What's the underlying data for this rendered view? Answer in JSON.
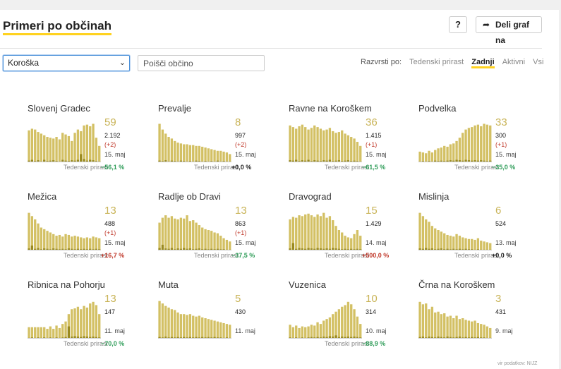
{
  "header": {
    "title": "Primeri po občinah",
    "help_label": "?",
    "share_label": "Deli graf na",
    "share_icon": "share-arrow-icon"
  },
  "filters": {
    "region": "Koroška",
    "search_placeholder": "Poišči občino",
    "sort_label": "Razvrsti po:",
    "sort_options": [
      "Tedenski prirast",
      "Zadnji",
      "Aktivni",
      "Vsi"
    ],
    "sort_active": "Zadnji"
  },
  "trend_label": "Tedenski prirast",
  "colors": {
    "bar": "#d3c064",
    "bar_dark": "#9a8a20",
    "accent": "#ffd21f",
    "down": "#2e9c58",
    "up": "#c0392b"
  },
  "source_label": "vir podatkov: NIJZ",
  "municipalities": [
    {
      "name": "Slovenj Gradec",
      "active": "59",
      "total": "2.192",
      "delta": "(+2)",
      "date": "15. maj",
      "trend": "−56,1 %",
      "dir": "down",
      "bars": [
        0.78,
        0.82,
        0.8,
        0.74,
        0.7,
        0.66,
        0.62,
        0.6,
        0.58,
        0.62,
        0.56,
        0.72,
        0.68,
        0.64,
        0.52,
        0.72,
        0.8,
        0.76,
        0.9,
        0.92,
        0.88,
        0.94,
        0.6,
        0.4
      ],
      "dark": [
        0.04,
        0.06,
        0.03,
        0.05,
        0.02,
        0.06,
        0.03,
        0.04,
        0.05,
        0.03,
        0.02,
        0.06,
        0.04,
        0.03,
        0.05,
        0.04,
        0.06,
        0.2,
        0.08,
        0.04,
        0.06,
        0.05,
        0.03,
        0.02
      ]
    },
    {
      "name": "Prevalje",
      "active": "8",
      "total": "997",
      "delta": "(+2)",
      "date": "15. maj",
      "trend": "+0,0 %",
      "dir": "flat",
      "bars": [
        0.94,
        0.8,
        0.7,
        0.62,
        0.58,
        0.52,
        0.48,
        0.46,
        0.44,
        0.44,
        0.42,
        0.42,
        0.4,
        0.4,
        0.38,
        0.36,
        0.34,
        0.32,
        0.3,
        0.28,
        0.28,
        0.26,
        0.24,
        0.2
      ],
      "dark": [
        0.04,
        0.03,
        0.05,
        0.02,
        0.04,
        0.03,
        0.02,
        0.04,
        0.03,
        0.02,
        0.03,
        0.02,
        0.04,
        0.03,
        0.02,
        0.03,
        0.02,
        0.03,
        0.02,
        0.04,
        0.02,
        0.03,
        0.02,
        0.02
      ]
    },
    {
      "name": "Ravne na Koroškem",
      "active": "36",
      "total": "1.415",
      "delta": "(+1)",
      "date": "15. maj",
      "trend": "−61,5 %",
      "dir": "down",
      "bars": [
        0.9,
        0.86,
        0.82,
        0.88,
        0.92,
        0.86,
        0.8,
        0.84,
        0.9,
        0.86,
        0.82,
        0.78,
        0.8,
        0.84,
        0.76,
        0.72,
        0.74,
        0.78,
        0.7,
        0.66,
        0.62,
        0.58,
        0.5,
        0.4
      ],
      "dark": [
        0.05,
        0.04,
        0.06,
        0.03,
        0.05,
        0.04,
        0.06,
        0.03,
        0.05,
        0.04,
        0.03,
        0.05,
        0.04,
        0.06,
        0.03,
        0.04,
        0.05,
        0.03,
        0.04,
        0.05,
        0.03,
        0.04,
        0.03,
        0.02
      ]
    },
    {
      "name": "Podvelka",
      "active": "33",
      "total": "300",
      "delta": "(+1)",
      "date": "15. maj",
      "trend": "−35,0 %",
      "dir": "down",
      "bars": [
        0.26,
        0.24,
        0.22,
        0.28,
        0.24,
        0.3,
        0.34,
        0.36,
        0.4,
        0.38,
        0.44,
        0.46,
        0.52,
        0.6,
        0.72,
        0.8,
        0.84,
        0.86,
        0.9,
        0.92,
        0.88,
        0.94,
        0.92,
        0.9
      ],
      "dark": [
        0.02,
        0.03,
        0.02,
        0.03,
        0.02,
        0.04,
        0.03,
        0.04,
        0.03,
        0.04,
        0.05,
        0.04,
        0.06,
        0.05,
        0.04,
        0.06,
        0.05,
        0.04,
        0.05,
        0.04,
        0.05,
        0.04,
        0.03,
        0.04
      ]
    },
    {
      "name": "Mežica",
      "active": "13",
      "total": "488",
      "delta": "(+1)",
      "date": "15. maj",
      "trend": "+16,7 %",
      "dir": "up",
      "bars": [
        0.92,
        0.84,
        0.76,
        0.66,
        0.56,
        0.52,
        0.48,
        0.44,
        0.4,
        0.36,
        0.38,
        0.34,
        0.4,
        0.38,
        0.34,
        0.36,
        0.34,
        0.32,
        0.3,
        0.32,
        0.3,
        0.34,
        0.32,
        0.3
      ],
      "dark": [
        0.05,
        0.12,
        0.04,
        0.06,
        0.03,
        0.05,
        0.04,
        0.03,
        0.05,
        0.04,
        0.03,
        0.04,
        0.03,
        0.05,
        0.04,
        0.03,
        0.04,
        0.03,
        0.04,
        0.03,
        0.04,
        0.03,
        0.04,
        0.03
      ]
    },
    {
      "name": "Radlje ob Dravi",
      "active": "13",
      "total": "863",
      "delta": "(+1)",
      "date": "15. maj",
      "trend": "−37,5 %",
      "dir": "down",
      "bars": [
        0.68,
        0.8,
        0.86,
        0.8,
        0.84,
        0.78,
        0.76,
        0.8,
        0.78,
        0.86,
        0.72,
        0.74,
        0.68,
        0.62,
        0.56,
        0.52,
        0.5,
        0.48,
        0.44,
        0.42,
        0.36,
        0.3,
        0.26,
        0.22
      ],
      "dark": [
        0.06,
        0.14,
        0.05,
        0.04,
        0.06,
        0.03,
        0.05,
        0.04,
        0.06,
        0.04,
        0.05,
        0.03,
        0.04,
        0.05,
        0.03,
        0.04,
        0.03,
        0.04,
        0.03,
        0.04,
        0.03,
        0.03,
        0.02,
        0.02
      ]
    },
    {
      "name": "Dravograd",
      "active": "15",
      "total": "1.429",
      "delta": "",
      "date": "14. maj",
      "trend": "+500,0 %",
      "dir": "up",
      "bars": [
        0.76,
        0.82,
        0.8,
        0.86,
        0.84,
        0.88,
        0.9,
        0.86,
        0.82,
        0.88,
        0.84,
        0.92,
        0.8,
        0.84,
        0.74,
        0.6,
        0.5,
        0.44,
        0.36,
        0.32,
        0.3,
        0.4,
        0.5,
        0.36
      ],
      "dark": [
        0.05,
        0.18,
        0.04,
        0.06,
        0.05,
        0.04,
        0.06,
        0.05,
        0.04,
        0.06,
        0.05,
        0.04,
        0.05,
        0.04,
        0.06,
        0.05,
        0.04,
        0.03,
        0.04,
        0.03,
        0.04,
        0.03,
        0.04,
        0.03
      ]
    },
    {
      "name": "Mislinja",
      "active": "6",
      "total": "524",
      "delta": "",
      "date": "13. maj",
      "trend": "+0,0 %",
      "dir": "flat",
      "bars": [
        0.92,
        0.84,
        0.76,
        0.7,
        0.6,
        0.54,
        0.5,
        0.46,
        0.42,
        0.38,
        0.36,
        0.34,
        0.4,
        0.36,
        0.32,
        0.3,
        0.28,
        0.28,
        0.26,
        0.3,
        0.24,
        0.22,
        0.2,
        0.18
      ],
      "dark": [
        0.05,
        0.04,
        0.06,
        0.04,
        0.05,
        0.03,
        0.04,
        0.05,
        0.03,
        0.04,
        0.03,
        0.04,
        0.03,
        0.04,
        0.03,
        0.04,
        0.03,
        0.03,
        0.02,
        0.03,
        0.02,
        0.02,
        0.02,
        0.02
      ]
    },
    {
      "name": "Ribnica na Pohorju",
      "active": "13",
      "total": "147",
      "delta": "",
      "date": "11. maj",
      "trend": "−70,0 %",
      "dir": "down",
      "bars": [
        0.28,
        0.28,
        0.28,
        0.28,
        0.28,
        0.28,
        0.24,
        0.3,
        0.24,
        0.32,
        0.26,
        0.36,
        0.42,
        0.6,
        0.72,
        0.74,
        0.78,
        0.72,
        0.8,
        0.76,
        0.86,
        0.9,
        0.82,
        0.6
      ],
      "dark": [
        0.02,
        0.03,
        0.02,
        0.03,
        0.02,
        0.03,
        0.02,
        0.03,
        0.02,
        0.03,
        0.02,
        0.03,
        0.04,
        0.3,
        0.05,
        0.06,
        0.05,
        0.04,
        0.06,
        0.05,
        0.04,
        0.05,
        0.04,
        0.03
      ]
    },
    {
      "name": "Muta",
      "active": "5",
      "total": "430",
      "delta": "",
      "date": "11. maj",
      "trend": "",
      "dir": "flat",
      "bars": [
        0.92,
        0.86,
        0.8,
        0.76,
        0.72,
        0.7,
        0.64,
        0.6,
        0.6,
        0.58,
        0.6,
        0.56,
        0.54,
        0.56,
        0.52,
        0.5,
        0.48,
        0.46,
        0.44,
        0.42,
        0.4,
        0.38,
        0.36,
        0.34
      ],
      "dark": [
        0.04,
        0.03,
        0.05,
        0.03,
        0.04,
        0.03,
        0.04,
        0.03,
        0.04,
        0.03,
        0.04,
        0.03,
        0.04,
        0.03,
        0.04,
        0.03,
        0.04,
        0.03,
        0.04,
        0.03,
        0.03,
        0.02,
        0.03,
        0.02
      ]
    },
    {
      "name": "Vuzenica",
      "active": "10",
      "total": "314",
      "delta": "",
      "date": "10. maj",
      "trend": "−88,9 %",
      "dir": "down",
      "bars": [
        0.34,
        0.28,
        0.32,
        0.26,
        0.3,
        0.28,
        0.3,
        0.34,
        0.32,
        0.4,
        0.36,
        0.44,
        0.48,
        0.52,
        0.6,
        0.66,
        0.72,
        0.78,
        0.82,
        0.9,
        0.84,
        0.72,
        0.54,
        0.36
      ],
      "dark": [
        0.03,
        0.02,
        0.03,
        0.02,
        0.03,
        0.02,
        0.03,
        0.04,
        0.03,
        0.04,
        0.03,
        0.05,
        0.04,
        0.06,
        0.05,
        0.08,
        0.04,
        0.05,
        0.04,
        0.05,
        0.04,
        0.05,
        0.04,
        0.03
      ]
    },
    {
      "name": "Črna na Koroškem",
      "active": "3",
      "total": "431",
      "delta": "",
      "date": "9. maj",
      "trend": "",
      "dir": "flat",
      "bars": [
        0.9,
        0.84,
        0.86,
        0.72,
        0.78,
        0.64,
        0.66,
        0.6,
        0.62,
        0.54,
        0.56,
        0.5,
        0.56,
        0.48,
        0.5,
        0.46,
        0.44,
        0.42,
        0.44,
        0.38,
        0.36,
        0.34,
        0.3,
        0.26
      ],
      "dark": [
        0.04,
        0.05,
        0.03,
        0.05,
        0.04,
        0.03,
        0.05,
        0.04,
        0.03,
        0.05,
        0.04,
        0.03,
        0.04,
        0.05,
        0.03,
        0.04,
        0.03,
        0.04,
        0.03,
        0.04,
        0.03,
        0.03,
        0.02,
        0.02
      ]
    }
  ]
}
